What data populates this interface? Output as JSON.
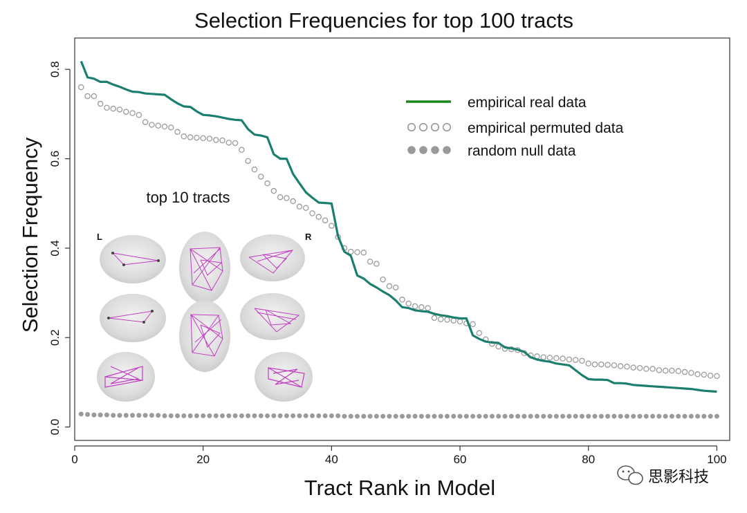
{
  "chart_data": {
    "type": "line",
    "title": "Selection Frequencies for top 100 tracts",
    "xlabel": "Tract Rank in Model",
    "ylabel": "Selection Frequency",
    "xlim": [
      0,
      102
    ],
    "ylim": [
      -0.03,
      0.87
    ],
    "xticks": [
      0,
      20,
      40,
      60,
      80,
      100
    ],
    "xtick_labels": [
      "0",
      "20",
      "40",
      "60",
      "80",
      "100"
    ],
    "yticks": [
      0.0,
      0.2,
      0.4,
      0.6,
      0.8
    ],
    "ytick_labels": [
      "0.0",
      "0.2",
      "0.4",
      "0.6",
      "0.8"
    ],
    "grid": false,
    "legend_position": "top-right",
    "series": [
      {
        "name": "empirical real data",
        "style": "line",
        "color": "#1a7f6e",
        "x": [
          1,
          2,
          3,
          4,
          5,
          6,
          7,
          8,
          9,
          10,
          11,
          12,
          13,
          14,
          15,
          16,
          17,
          18,
          19,
          20,
          21,
          22,
          23,
          24,
          25,
          26,
          27,
          28,
          29,
          30,
          31,
          32,
          33,
          34,
          35,
          36,
          37,
          38,
          39,
          40,
          41,
          42,
          43,
          44,
          45,
          46,
          47,
          48,
          49,
          50,
          51,
          52,
          53,
          54,
          55,
          56,
          57,
          58,
          59,
          60,
          61,
          62,
          63,
          64,
          65,
          66,
          67,
          68,
          69,
          70,
          71,
          72,
          73,
          74,
          75,
          76,
          77,
          78,
          79,
          80,
          81,
          82,
          83,
          84,
          85,
          86,
          87,
          88,
          89,
          90,
          91,
          92,
          93,
          94,
          95,
          96,
          97,
          98,
          99,
          100
        ],
        "values": [
          0.818,
          0.782,
          0.779,
          0.772,
          0.772,
          0.766,
          0.761,
          0.755,
          0.75,
          0.749,
          0.746,
          0.745,
          0.744,
          0.743,
          0.733,
          0.724,
          0.717,
          0.716,
          0.706,
          0.698,
          0.697,
          0.695,
          0.692,
          0.689,
          0.687,
          0.686,
          0.666,
          0.654,
          0.652,
          0.648,
          0.61,
          0.6,
          0.6,
          0.566,
          0.545,
          0.525,
          0.513,
          0.502,
          0.501,
          0.5,
          0.427,
          0.392,
          0.383,
          0.339,
          0.332,
          0.32,
          0.312,
          0.303,
          0.295,
          0.283,
          0.268,
          0.266,
          0.261,
          0.259,
          0.258,
          0.253,
          0.25,
          0.248,
          0.245,
          0.243,
          0.243,
          0.205,
          0.197,
          0.191,
          0.189,
          0.188,
          0.178,
          0.176,
          0.173,
          0.168,
          0.156,
          0.151,
          0.148,
          0.146,
          0.142,
          0.14,
          0.138,
          0.127,
          0.116,
          0.107,
          0.106,
          0.106,
          0.105,
          0.098,
          0.098,
          0.097,
          0.094,
          0.093,
          0.092,
          0.091,
          0.09,
          0.089,
          0.088,
          0.087,
          0.086,
          0.085,
          0.083,
          0.081,
          0.08,
          0.079
        ]
      },
      {
        "name": "empirical permuted data",
        "style": "open-circles",
        "color": "#9a9a9a",
        "x": [
          1,
          2,
          3,
          4,
          5,
          6,
          7,
          8,
          9,
          10,
          11,
          12,
          13,
          14,
          15,
          16,
          17,
          18,
          19,
          20,
          21,
          22,
          23,
          24,
          25,
          26,
          27,
          28,
          29,
          30,
          31,
          32,
          33,
          34,
          35,
          36,
          37,
          38,
          39,
          40,
          41,
          42,
          43,
          44,
          45,
          46,
          47,
          48,
          49,
          50,
          51,
          52,
          53,
          54,
          55,
          56,
          57,
          58,
          59,
          60,
          61,
          62,
          63,
          64,
          65,
          66,
          67,
          68,
          69,
          70,
          71,
          72,
          73,
          74,
          75,
          76,
          77,
          78,
          79,
          80,
          81,
          82,
          83,
          84,
          85,
          86,
          87,
          88,
          89,
          90,
          91,
          92,
          93,
          94,
          95,
          96,
          97,
          98,
          99,
          100
        ],
        "values": [
          0.76,
          0.74,
          0.74,
          0.723,
          0.714,
          0.712,
          0.71,
          0.705,
          0.702,
          0.698,
          0.682,
          0.676,
          0.674,
          0.672,
          0.67,
          0.66,
          0.65,
          0.648,
          0.647,
          0.646,
          0.645,
          0.642,
          0.641,
          0.636,
          0.635,
          0.62,
          0.595,
          0.576,
          0.56,
          0.545,
          0.528,
          0.514,
          0.512,
          0.505,
          0.493,
          0.49,
          0.478,
          0.47,
          0.462,
          0.45,
          0.425,
          0.4,
          0.392,
          0.391,
          0.39,
          0.37,
          0.365,
          0.33,
          0.315,
          0.312,
          0.285,
          0.276,
          0.27,
          0.268,
          0.266,
          0.244,
          0.241,
          0.24,
          0.238,
          0.236,
          0.232,
          0.23,
          0.21,
          0.196,
          0.186,
          0.18,
          0.175,
          0.174,
          0.172,
          0.165,
          0.16,
          0.158,
          0.156,
          0.155,
          0.154,
          0.153,
          0.151,
          0.15,
          0.148,
          0.142,
          0.14,
          0.14,
          0.139,
          0.138,
          0.136,
          0.135,
          0.133,
          0.132,
          0.13,
          0.13,
          0.127,
          0.126,
          0.126,
          0.125,
          0.123,
          0.121,
          0.118,
          0.117,
          0.115,
          0.114
        ]
      },
      {
        "name": "random null data",
        "style": "filled-circles",
        "color": "#9a9a9a",
        "x": [
          1,
          2,
          3,
          4,
          5,
          6,
          7,
          8,
          9,
          10,
          11,
          12,
          13,
          14,
          15,
          16,
          17,
          18,
          19,
          20,
          21,
          22,
          23,
          24,
          25,
          26,
          27,
          28,
          29,
          30,
          31,
          32,
          33,
          34,
          35,
          36,
          37,
          38,
          39,
          40,
          41,
          42,
          43,
          44,
          45,
          46,
          47,
          48,
          49,
          50,
          51,
          52,
          53,
          54,
          55,
          56,
          57,
          58,
          59,
          60,
          61,
          62,
          63,
          64,
          65,
          66,
          67,
          68,
          69,
          70,
          71,
          72,
          73,
          74,
          75,
          76,
          77,
          78,
          79,
          80,
          81,
          82,
          83,
          84,
          85,
          86,
          87,
          88,
          89,
          90,
          91,
          92,
          93,
          94,
          95,
          96,
          97,
          98,
          99,
          100
        ],
        "values": [
          0.029,
          0.028,
          0.027,
          0.027,
          0.027,
          0.026,
          0.026,
          0.026,
          0.026,
          0.026,
          0.026,
          0.026,
          0.026,
          0.025,
          0.025,
          0.025,
          0.025,
          0.025,
          0.025,
          0.025,
          0.025,
          0.025,
          0.025,
          0.025,
          0.025,
          0.025,
          0.025,
          0.025,
          0.025,
          0.025,
          0.025,
          0.025,
          0.025,
          0.025,
          0.025,
          0.025,
          0.025,
          0.025,
          0.025,
          0.025,
          0.025,
          0.024,
          0.024,
          0.024,
          0.024,
          0.024,
          0.024,
          0.024,
          0.024,
          0.024,
          0.024,
          0.024,
          0.024,
          0.024,
          0.024,
          0.024,
          0.024,
          0.024,
          0.024,
          0.024,
          0.024,
          0.024,
          0.024,
          0.024,
          0.024,
          0.024,
          0.024,
          0.024,
          0.024,
          0.024,
          0.024,
          0.024,
          0.024,
          0.024,
          0.024,
          0.024,
          0.024,
          0.024,
          0.024,
          0.024,
          0.024,
          0.024,
          0.024,
          0.024,
          0.024,
          0.024,
          0.024,
          0.024,
          0.024,
          0.024,
          0.024,
          0.024,
          0.024,
          0.024,
          0.024,
          0.024,
          0.024,
          0.024,
          0.024,
          0.024
        ]
      }
    ],
    "legend_line_color": "#178a1a",
    "annotations": {
      "inset_title": "top 10 tracts",
      "inset_left_label": "L",
      "inset_right_label": "R",
      "watermark": "思影科技"
    }
  }
}
